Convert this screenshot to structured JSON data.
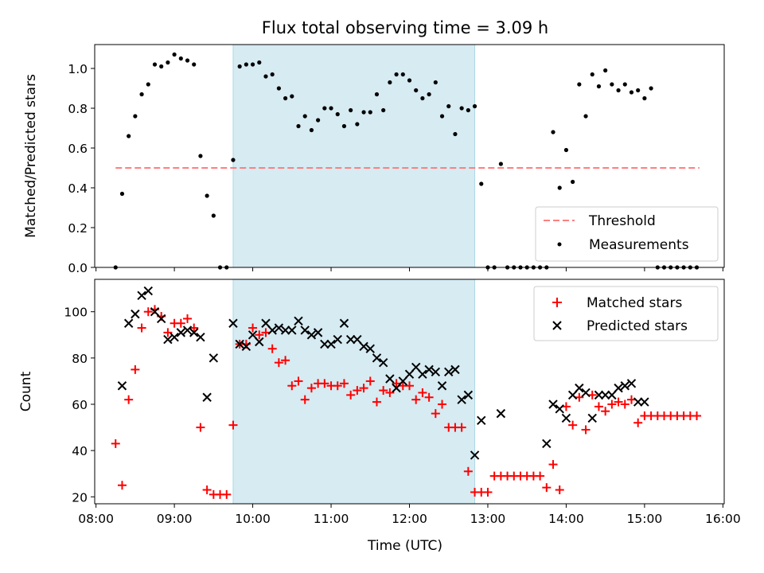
{
  "chart_data": [
    {
      "type": "scatter",
      "title": "Flux total observing time = 3.09 h",
      "xlabel": "",
      "ylabel": "Matched/Predicted stars",
      "xlim": [
        "07:59",
        "16:01"
      ],
      "ylim": [
        0,
        1.12
      ],
      "xticks": [
        "08:00",
        "09:00",
        "10:00",
        "11:00",
        "12:00",
        "13:00",
        "14:00",
        "15:00",
        "16:00"
      ],
      "yticks": [
        "0.0",
        "0.2",
        "0.4",
        "0.6",
        "0.8",
        "1.0"
      ],
      "yticks_values": [
        0,
        0.2,
        0.4,
        0.6,
        0.8,
        1.0
      ],
      "shaded_span": {
        "start": "09:45",
        "end": "12:50",
        "color": "#add8e6"
      },
      "legend_position": "lower right",
      "series": [
        {
          "name": "Threshold",
          "kind": "dashed-line",
          "color": "#ff7f7f",
          "x": [
            "08:15",
            "15:42"
          ],
          "values": [
            0.5,
            0.5
          ]
        },
        {
          "name": "Measurements",
          "kind": "dot",
          "color": "#000000",
          "x": [
            "08:15",
            "08:20",
            "08:25",
            "08:30",
            "08:35",
            "08:40",
            "08:45",
            "08:50",
            "08:55",
            "09:00",
            "09:05",
            "09:10",
            "09:15",
            "09:20",
            "09:25",
            "09:30",
            "09:35",
            "09:40",
            "09:45",
            "09:50",
            "09:55",
            "10:00",
            "10:05",
            "10:10",
            "10:15",
            "10:20",
            "10:25",
            "10:30",
            "10:35",
            "10:40",
            "10:45",
            "10:50",
            "10:55",
            "11:00",
            "11:05",
            "11:10",
            "11:15",
            "11:20",
            "11:25",
            "11:30",
            "11:35",
            "11:40",
            "11:45",
            "11:50",
            "11:55",
            "12:00",
            "12:05",
            "12:10",
            "12:15",
            "12:20",
            "12:25",
            "12:30",
            "12:35",
            "12:40",
            "12:45",
            "12:50",
            "12:55",
            "13:00",
            "13:05",
            "13:10",
            "13:15",
            "13:20",
            "13:25",
            "13:30",
            "13:35",
            "13:40",
            "13:45",
            "13:50",
            "13:55",
            "14:00",
            "14:05",
            "14:10",
            "14:15",
            "14:20",
            "14:25",
            "14:30",
            "14:35",
            "14:40",
            "14:45",
            "14:50",
            "14:55",
            "15:00",
            "15:05",
            "15:10",
            "15:15",
            "15:20",
            "15:25",
            "15:30",
            "15:35",
            "15:40"
          ],
          "values": [
            0.0,
            0.37,
            0.66,
            0.76,
            0.87,
            0.92,
            1.02,
            1.01,
            1.03,
            1.07,
            1.05,
            1.04,
            1.02,
            0.56,
            0.36,
            0.26,
            0.0,
            0.0,
            0.54,
            1.01,
            1.02,
            1.02,
            1.03,
            0.96,
            0.97,
            0.9,
            0.85,
            0.86,
            0.71,
            0.76,
            0.69,
            0.74,
            0.8,
            0.8,
            0.77,
            0.71,
            0.79,
            0.72,
            0.78,
            0.78,
            0.87,
            0.79,
            0.93,
            0.97,
            0.97,
            0.94,
            0.89,
            0.85,
            0.87,
            0.93,
            0.76,
            0.81,
            0.67,
            0.8,
            0.79,
            0.81,
            0.42,
            0.0,
            0.0,
            0.52,
            0.0,
            0.0,
            0.0,
            0.0,
            0.0,
            0.0,
            0.0,
            0.68,
            0.4,
            0.59,
            0.43,
            0.92,
            0.76,
            0.97,
            0.91,
            0.99,
            0.92,
            0.89,
            0.92,
            0.88,
            0.89,
            0.85,
            0.9,
            0.0,
            0.0,
            0.0,
            0.0,
            0.0,
            0.0,
            0.0
          ]
        }
      ]
    },
    {
      "type": "scatter",
      "title": "",
      "xlabel": "Time (UTC)",
      "ylabel": "Count",
      "xlim": [
        "07:59",
        "16:01"
      ],
      "ylim": [
        17,
        114
      ],
      "xticks": [
        "08:00",
        "09:00",
        "10:00",
        "11:00",
        "12:00",
        "13:00",
        "14:00",
        "15:00",
        "16:00"
      ],
      "yticks": [
        "20",
        "40",
        "60",
        "80",
        "100"
      ],
      "yticks_values": [
        20,
        40,
        60,
        80,
        100
      ],
      "shaded_span": {
        "start": "09:45",
        "end": "12:50",
        "color": "#add8e6"
      },
      "legend_position": "upper right",
      "series": [
        {
          "name": "Matched stars",
          "kind": "plus",
          "color": "#ff0000",
          "x": [
            "08:15",
            "08:20",
            "08:25",
            "08:30",
            "08:35",
            "08:40",
            "08:45",
            "08:50",
            "08:55",
            "09:00",
            "09:05",
            "09:10",
            "09:15",
            "09:20",
            "09:25",
            "09:30",
            "09:35",
            "09:40",
            "09:45",
            "09:50",
            "09:55",
            "10:00",
            "10:05",
            "10:10",
            "10:15",
            "10:20",
            "10:25",
            "10:30",
            "10:35",
            "10:40",
            "10:45",
            "10:50",
            "10:55",
            "11:00",
            "11:05",
            "11:10",
            "11:15",
            "11:20",
            "11:25",
            "11:30",
            "11:35",
            "11:40",
            "11:45",
            "11:50",
            "11:55",
            "12:00",
            "12:05",
            "12:10",
            "12:15",
            "12:20",
            "12:25",
            "12:30",
            "12:35",
            "12:40",
            "12:45",
            "12:50",
            "12:55",
            "13:00",
            "13:05",
            "13:10",
            "13:15",
            "13:20",
            "13:25",
            "13:30",
            "13:35",
            "13:40",
            "13:45",
            "13:50",
            "13:55",
            "14:00",
            "14:05",
            "14:10",
            "14:15",
            "14:20",
            "14:25",
            "14:30",
            "14:35",
            "14:40",
            "14:45",
            "14:50",
            "14:55",
            "15:00",
            "15:05",
            "15:10",
            "15:15",
            "15:20",
            "15:25",
            "15:30",
            "15:35",
            "15:40"
          ],
          "values": [
            43,
            25,
            62,
            75,
            93,
            100,
            101,
            98,
            91,
            95,
            95,
            97,
            93,
            50,
            23,
            21,
            21,
            21,
            51,
            86,
            86,
            93,
            90,
            91,
            84,
            78,
            79,
            68,
            70,
            62,
            67,
            69,
            69,
            68,
            68,
            69,
            64,
            66,
            67,
            70,
            61,
            66,
            65,
            69,
            68,
            68,
            62,
            65,
            63,
            56,
            60,
            50,
            50,
            50,
            31,
            22,
            22,
            22,
            29,
            29,
            29,
            29,
            29,
            29,
            29,
            29,
            24,
            34,
            23,
            59,
            51,
            63,
            49,
            64,
            59,
            57,
            60,
            61,
            60,
            62,
            52,
            55,
            55,
            55,
            55,
            55,
            55,
            55,
            55,
            55
          ]
        },
        {
          "name": "Predicted stars",
          "kind": "x",
          "color": "#000000",
          "x": [
            "08:20",
            "08:25",
            "08:30",
            "08:35",
            "08:40",
            "08:45",
            "08:50",
            "08:55",
            "09:00",
            "09:05",
            "09:10",
            "09:15",
            "09:20",
            "09:25",
            "09:30",
            "09:45",
            "09:50",
            "09:55",
            "10:00",
            "10:05",
            "10:10",
            "10:15",
            "10:20",
            "10:25",
            "10:30",
            "10:35",
            "10:40",
            "10:45",
            "10:50",
            "10:55",
            "11:00",
            "11:05",
            "11:10",
            "11:15",
            "11:20",
            "11:25",
            "11:30",
            "11:35",
            "11:40",
            "11:45",
            "11:50",
            "11:55",
            "12:00",
            "12:05",
            "12:10",
            "12:15",
            "12:20",
            "12:25",
            "12:30",
            "12:35",
            "12:40",
            "12:45",
            "12:50",
            "12:55",
            "13:10",
            "13:45",
            "13:50",
            "13:55",
            "14:00",
            "14:05",
            "14:10",
            "14:15",
            "14:20",
            "14:25",
            "14:30",
            "14:35",
            "14:40",
            "14:45",
            "14:50",
            "14:55",
            "15:00"
          ],
          "values": [
            68,
            95,
            99,
            107,
            109,
            100,
            97,
            88,
            89,
            91,
            92,
            91,
            89,
            63,
            80,
            95,
            86,
            85,
            90,
            87,
            95,
            92,
            93,
            92,
            92,
            96,
            92,
            90,
            91,
            86,
            86,
            88,
            95,
            88,
            88,
            85,
            84,
            80,
            78,
            71,
            67,
            70,
            73,
            76,
            73,
            75,
            74,
            68,
            74,
            75,
            62,
            64,
            38,
            53,
            56,
            43,
            60,
            58,
            54,
            64,
            67,
            65,
            54,
            64,
            64,
            64,
            67,
            68,
            69,
            61,
            61
          ]
        }
      ]
    }
  ]
}
